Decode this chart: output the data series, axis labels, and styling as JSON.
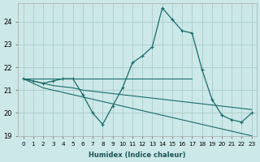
{
  "xlabel": "Humidex (Indice chaleur)",
  "bg_color": "#cce8e8",
  "grid_color": "#aacccc",
  "line_color": "#1a6b6b",
  "xlim": [
    -0.5,
    23.5
  ],
  "ylim": [
    19.0,
    24.8
  ],
  "yticks": [
    19,
    20,
    21,
    22,
    23,
    24
  ],
  "xticks": [
    0,
    1,
    2,
    3,
    4,
    5,
    6,
    7,
    8,
    9,
    10,
    11,
    12,
    13,
    14,
    15,
    16,
    17,
    18,
    19,
    20,
    21,
    22,
    23
  ],
  "series1_x": [
    0,
    1,
    2,
    3,
    4,
    5,
    6,
    7,
    8,
    9,
    10,
    11,
    12,
    13,
    14,
    15,
    16,
    17,
    18,
    19,
    20,
    21,
    22,
    23
  ],
  "series1_y": [
    21.5,
    21.4,
    21.3,
    21.4,
    21.5,
    21.5,
    20.8,
    20.0,
    19.5,
    20.3,
    21.1,
    22.2,
    22.5,
    22.9,
    24.6,
    24.1,
    23.6,
    23.5,
    21.9,
    20.6,
    19.9,
    19.7,
    19.6,
    20.0
  ],
  "series2_x": [
    0,
    17
  ],
  "series2_y": [
    21.5,
    21.5
  ],
  "series3_x": [
    0,
    1,
    2,
    3,
    4,
    5,
    6,
    7,
    8,
    9,
    10,
    11,
    12,
    13,
    14,
    15,
    16,
    17,
    18,
    19,
    20,
    21,
    22,
    23
  ],
  "series3_y": [
    21.5,
    21.4,
    21.3,
    21.2,
    21.15,
    21.1,
    21.0,
    20.95,
    20.9,
    20.85,
    20.8,
    20.75,
    20.7,
    20.65,
    20.6,
    20.55,
    20.5,
    20.45,
    20.4,
    20.35,
    20.3,
    20.25,
    20.2,
    20.15
  ],
  "series4_x": [
    0,
    1,
    2,
    3,
    4,
    5,
    6,
    7,
    8,
    9,
    10,
    11,
    12,
    13,
    14,
    15,
    16,
    17,
    18,
    19,
    20,
    21,
    22,
    23
  ],
  "series4_y": [
    21.5,
    21.3,
    21.1,
    21.0,
    20.9,
    20.8,
    20.7,
    20.6,
    20.5,
    20.4,
    20.3,
    20.2,
    20.1,
    20.0,
    19.9,
    19.8,
    19.7,
    19.6,
    19.5,
    19.4,
    19.3,
    19.2,
    19.1,
    19.0
  ]
}
